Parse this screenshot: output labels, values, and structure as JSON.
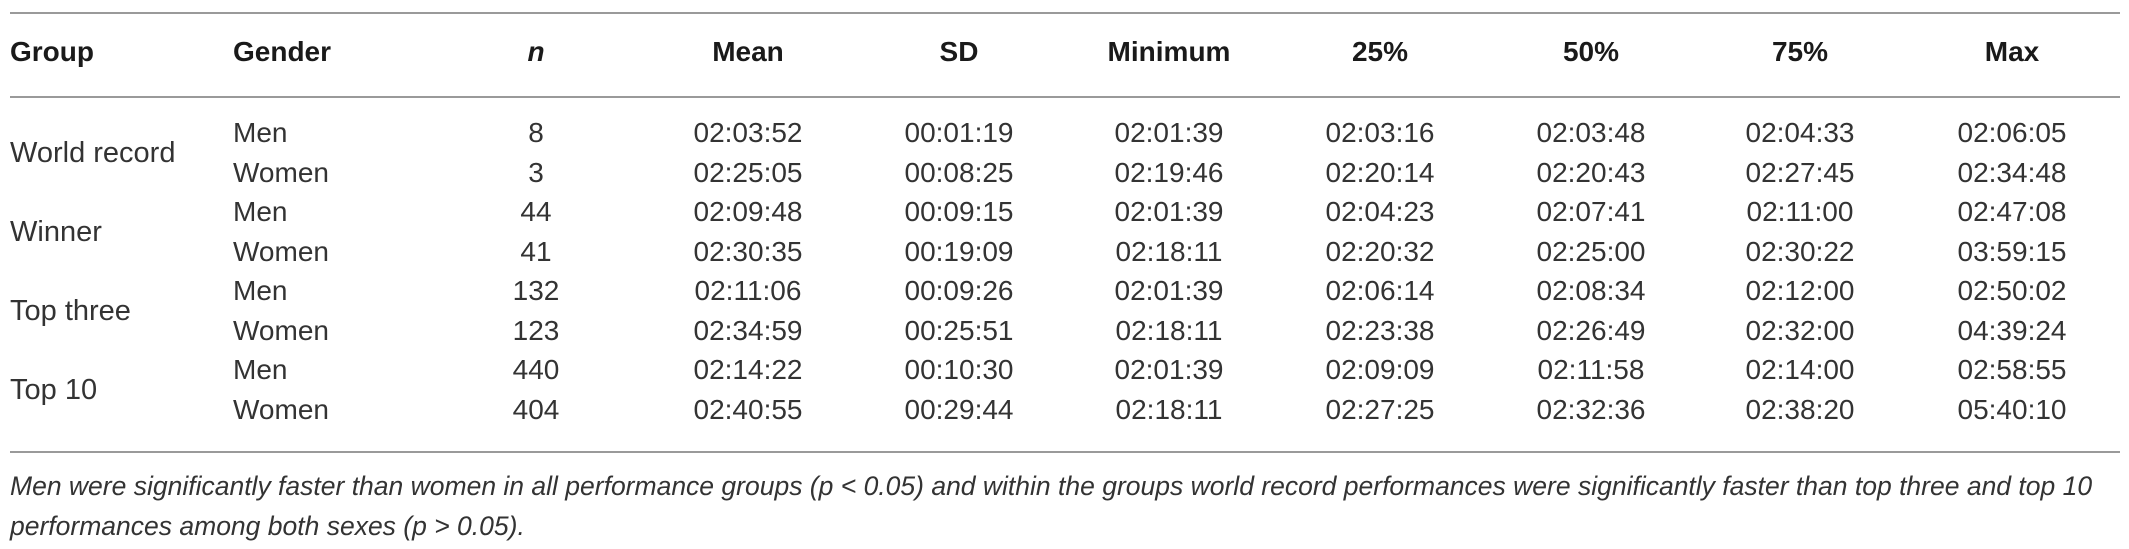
{
  "table": {
    "headers": {
      "group": "Group",
      "gender": "Gender",
      "n": "n",
      "mean": "Mean",
      "sd": "SD",
      "minimum": "Minimum",
      "p25": "25%",
      "p50": "50%",
      "p75": "75%",
      "max": "Max"
    },
    "groups": [
      {
        "label": "World record",
        "rows": [
          {
            "gender": "Men",
            "n": "8",
            "mean": "02:03:52",
            "sd": "00:01:19",
            "minimum": "02:01:39",
            "p25": "02:03:16",
            "p50": "02:03:48",
            "p75": "02:04:33",
            "max": "02:06:05"
          },
          {
            "gender": "Women",
            "n": "3",
            "mean": "02:25:05",
            "sd": "00:08:25",
            "minimum": "02:19:46",
            "p25": "02:20:14",
            "p50": "02:20:43",
            "p75": "02:27:45",
            "max": "02:34:48"
          }
        ]
      },
      {
        "label": "Winner",
        "rows": [
          {
            "gender": "Men",
            "n": "44",
            "mean": "02:09:48",
            "sd": "00:09:15",
            "minimum": "02:01:39",
            "p25": "02:04:23",
            "p50": "02:07:41",
            "p75": "02:11:00",
            "max": "02:47:08"
          },
          {
            "gender": "Women",
            "n": "41",
            "mean": "02:30:35",
            "sd": "00:19:09",
            "minimum": "02:18:11",
            "p25": "02:20:32",
            "p50": "02:25:00",
            "p75": "02:30:22",
            "max": "03:59:15"
          }
        ]
      },
      {
        "label": "Top three",
        "rows": [
          {
            "gender": "Men",
            "n": "132",
            "mean": "02:11:06",
            "sd": "00:09:26",
            "minimum": "02:01:39",
            "p25": "02:06:14",
            "p50": "02:08:34",
            "p75": "02:12:00",
            "max": "02:50:02"
          },
          {
            "gender": "Women",
            "n": "123",
            "mean": "02:34:59",
            "sd": "00:25:51",
            "minimum": "02:18:11",
            "p25": "02:23:38",
            "p50": "02:26:49",
            "p75": "02:32:00",
            "max": "04:39:24"
          }
        ]
      },
      {
        "label": "Top 10",
        "rows": [
          {
            "gender": "Men",
            "n": "440",
            "mean": "02:14:22",
            "sd": "00:10:30",
            "minimum": "02:01:39",
            "p25": "02:09:09",
            "p50": "02:11:58",
            "p75": "02:14:00",
            "max": "02:58:55"
          },
          {
            "gender": "Women",
            "n": "404",
            "mean": "02:40:55",
            "sd": "00:29:44",
            "minimum": "02:18:11",
            "p25": "02:27:25",
            "p50": "02:32:36",
            "p75": "02:38:20",
            "max": "05:40:10"
          }
        ]
      }
    ],
    "footnote": "Men were significantly faster than women in all performance groups (p < 0.05) and within the groups world record performances were significantly faster than top three and top 10 performances among both sexes (p > 0.05)."
  }
}
